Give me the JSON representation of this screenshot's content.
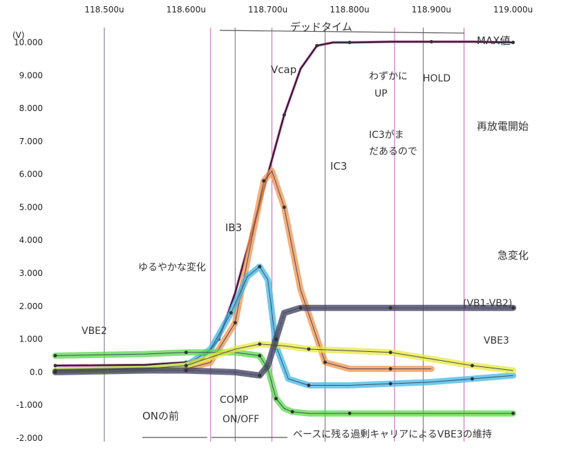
{
  "chart_data": {
    "type": "line",
    "title": "",
    "xlabel": "",
    "ylabel": "(V)",
    "xlim": [
      118.44,
      119.04
    ],
    "ylim": [
      -2.0,
      10.7
    ],
    "x_ticks": [
      "118.500u",
      "118.600u",
      "118.700u",
      "118.800u",
      "118.900u",
      "119.000u"
    ],
    "x_tick_values": [
      118.5,
      118.6,
      118.7,
      118.8,
      118.9,
      119.0
    ],
    "y_ticks": [
      "10.000",
      "9.000",
      "8.000",
      "7.000",
      "6.000",
      "5.000",
      "4.000",
      "3.000",
      "2.000",
      "1.000",
      "0.0",
      "-1.000",
      "-2.000"
    ],
    "y_tick_values": [
      10,
      9,
      8,
      7,
      6,
      5,
      4,
      3,
      2,
      1,
      0,
      -1,
      -2
    ],
    "vertical_markers": [
      118.5,
      118.63,
      118.66,
      118.705,
      118.77,
      118.855,
      118.89,
      118.94
    ],
    "series": [
      {
        "color": "#2a1a2a",
        "highlight": "#e070c0",
        "x": [
          118.44,
          118.55,
          118.6,
          118.62,
          118.64,
          118.66,
          118.68,
          118.7,
          118.72,
          118.74,
          118.76,
          118.78,
          118.8,
          118.85,
          118.9,
          118.95,
          119.0
        ],
        "values": [
          0.2,
          0.22,
          0.3,
          0.4,
          1.0,
          2.4,
          4.2,
          6.0,
          7.8,
          9.2,
          9.9,
          10.0,
          10.0,
          10.02,
          10.02,
          10.02,
          10.0
        ]
      },
      {
        "color": "#f2924a",
        "highlight": "#f2924a",
        "x": [
          118.6,
          118.63,
          118.66,
          118.68,
          118.695,
          118.705,
          118.72,
          118.74,
          118.77,
          118.8,
          118.85,
          118.9
        ],
        "values": [
          0.1,
          0.3,
          1.5,
          4.0,
          5.8,
          6.1,
          5.0,
          2.5,
          0.3,
          0.1,
          0.1,
          0.1
        ]
      },
      {
        "color": "#3fb8e6",
        "highlight": "#3fb8e6",
        "x": [
          118.44,
          118.55,
          118.6,
          118.63,
          118.655,
          118.675,
          118.69,
          118.7,
          118.71,
          118.725,
          118.75,
          118.8,
          118.85,
          118.9,
          118.95,
          119.0
        ],
        "values": [
          0.05,
          0.1,
          0.2,
          0.7,
          1.8,
          2.9,
          3.2,
          2.8,
          0.8,
          -0.2,
          -0.4,
          -0.4,
          -0.35,
          -0.3,
          -0.2,
          -0.1
        ]
      },
      {
        "color": "#5ad84a",
        "highlight": "#5ad84a",
        "x": [
          118.44,
          118.55,
          118.6,
          118.66,
          118.69,
          118.7,
          118.71,
          118.72,
          118.73,
          118.75,
          118.8,
          118.9,
          119.0
        ],
        "values": [
          0.5,
          0.55,
          0.6,
          0.6,
          0.5,
          0.1,
          -0.8,
          -1.1,
          -1.2,
          -1.25,
          -1.25,
          -1.25,
          -1.25
        ]
      },
      {
        "color": "#e8e83a",
        "highlight": "#e8e83a",
        "x": [
          118.44,
          118.55,
          118.6,
          118.66,
          118.69,
          118.72,
          118.75,
          118.8,
          118.85,
          118.9,
          118.95,
          119.0
        ],
        "values": [
          0.05,
          0.1,
          0.2,
          0.7,
          0.85,
          0.8,
          0.7,
          0.65,
          0.6,
          0.4,
          0.2,
          0.05
        ]
      },
      {
        "color": "#3a3a5a",
        "highlight": "#3a3a5a",
        "x": [
          118.44,
          118.55,
          118.6,
          118.66,
          118.69,
          118.7,
          118.71,
          118.72,
          118.74,
          118.8,
          118.85,
          118.9,
          119.0
        ],
        "values": [
          0.0,
          0.05,
          0.05,
          0.0,
          -0.1,
          0.2,
          1.0,
          1.8,
          1.95,
          1.95,
          1.95,
          1.95,
          1.95
        ]
      }
    ]
  },
  "annotations": {
    "dead_time": "デッドタイム",
    "max": "MAX値",
    "vcap": "Vcap",
    "slight_up": "わずかに",
    "up": "UP",
    "hold": "HOLD",
    "rediscahrge": "再放電開始",
    "ic3": "IC3",
    "ic3_note_1": "IC3がま",
    "ic3_note_2": "だあるので",
    "ib3": "IB3",
    "gradual": "ゆるやかな変化",
    "sudden": "急変化",
    "vb1_vb2": "(VB1-VB2)",
    "vbe2": "VBE2",
    "vbe3": "VBE3",
    "comp": "COMP",
    "on_off": "ON/OFF",
    "before_on": "ONの前",
    "base_note": "ベースに残る過剰キャリアによるVBE3の維持"
  }
}
